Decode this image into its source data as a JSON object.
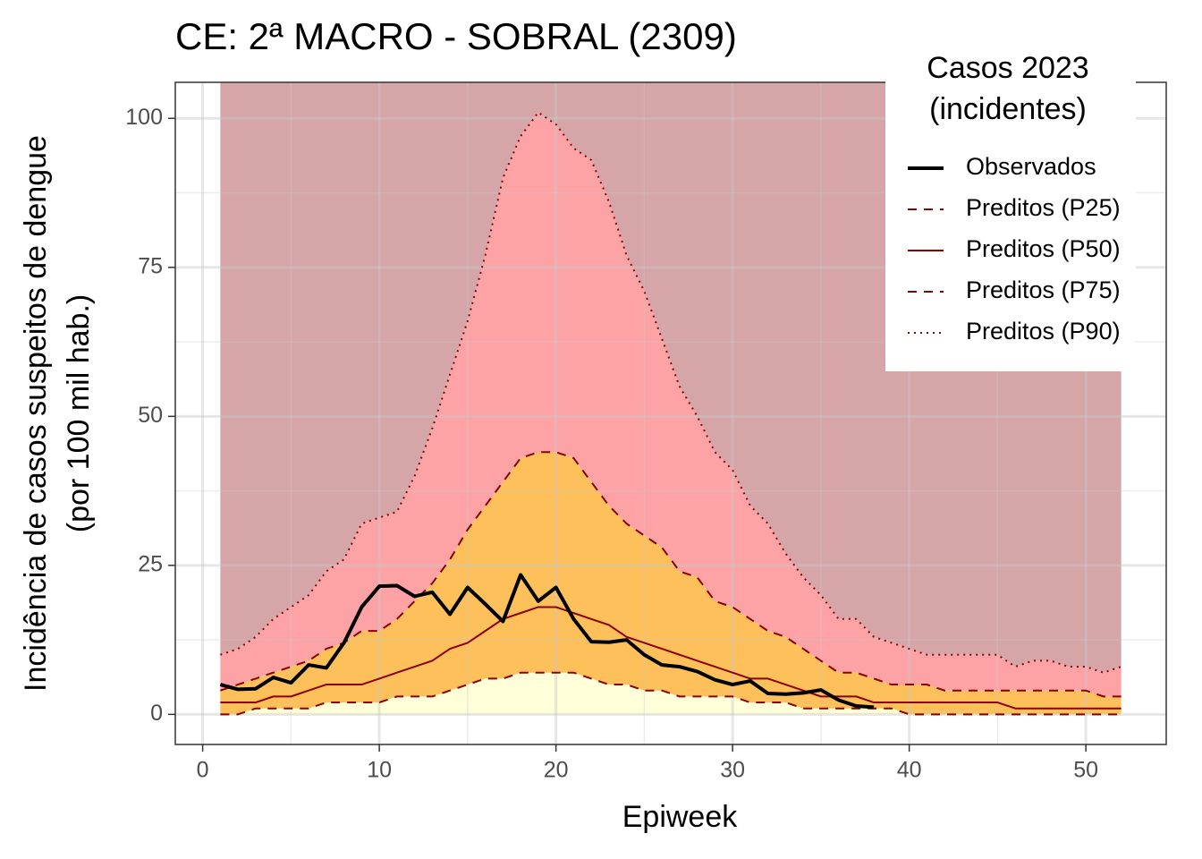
{
  "chart_data": {
    "type": "line",
    "title": "CE: 2ª MACRO - SOBRAL (2309)",
    "x_label": "Epiweek",
    "y_label": [
      "Incidência de casos suspeitos de dengue",
      "(por 100 mil hab.)"
    ],
    "legend_title": [
      "Casos 2023",
      "(incidentes)"
    ],
    "legend_position": "top-right",
    "grid": true,
    "xlim": [
      -1.55,
      54.55
    ],
    "xticks": [
      0,
      10,
      20,
      30,
      40,
      50
    ],
    "xminorticks": [
      5,
      15,
      25,
      35,
      45
    ],
    "ylim": [
      -5.05,
      106.05
    ],
    "yticks": [
      0,
      25,
      50,
      75,
      100
    ],
    "yminorticks": [
      12.5,
      37.5,
      62.5,
      87.5
    ],
    "band_colors": [
      "#ffffd9",
      "#fdc05a",
      "#fea3a5",
      "#d6a5a7"
    ],
    "x": [
      1,
      2,
      3,
      4,
      5,
      6,
      7,
      8,
      9,
      10,
      11,
      12,
      13,
      14,
      15,
      16,
      17,
      18,
      19,
      20,
      21,
      22,
      23,
      24,
      25,
      26,
      27,
      28,
      29,
      30,
      31,
      32,
      33,
      34,
      35,
      36,
      37,
      38,
      39,
      40,
      41,
      42,
      43,
      44,
      45,
      46,
      47,
      48,
      49,
      50,
      51,
      52
    ],
    "series": [
      {
        "name": "Observados",
        "color": "#000000",
        "style": "solid",
        "width": 4,
        "values": [
          5,
          4.2,
          4.3,
          6.2,
          5.3,
          8.3,
          7.8,
          12,
          18,
          21.5,
          21.6,
          19.8,
          20.5,
          16.8,
          21.3,
          18.5,
          15.6,
          23.4,
          19,
          21.3,
          16,
          12.2,
          12.1,
          12.5,
          10,
          8.3,
          8,
          7.2,
          5.8,
          5,
          5.6,
          3.5,
          3.4,
          3.6,
          4.1,
          2.4,
          1.4,
          1.2,
          null,
          null,
          null,
          null,
          null,
          null,
          null,
          null,
          null,
          null,
          null,
          null,
          null,
          null
        ]
      },
      {
        "name": "Preditos (P25)",
        "color": "#8b0000",
        "style": "dashed",
        "width": 2,
        "values": [
          0,
          0,
          1,
          1,
          1,
          1,
          2,
          2,
          2,
          2,
          3,
          3,
          3,
          4,
          5,
          6,
          6,
          7,
          7,
          7,
          7,
          6,
          5,
          5,
          4,
          4,
          3,
          3,
          3,
          3,
          2,
          2,
          2,
          1,
          1,
          1,
          1,
          1,
          1,
          0,
          0,
          0,
          0,
          0,
          0,
          0,
          0,
          0,
          0,
          0,
          0,
          0
        ]
      },
      {
        "name": "Preditos (P50)",
        "color": "#8b0000",
        "style": "solid",
        "width": 2,
        "values": [
          2,
          2,
          2,
          3,
          3,
          4,
          5,
          5,
          5,
          6,
          7,
          8,
          9,
          11,
          12,
          14,
          16,
          17,
          18,
          18,
          17,
          16,
          15,
          13,
          12,
          11,
          10,
          9,
          8,
          7,
          6,
          6,
          5,
          4,
          3,
          3,
          3,
          2,
          2,
          2,
          2,
          2,
          2,
          2,
          2,
          1,
          1,
          1,
          1,
          1,
          1,
          1
        ]
      },
      {
        "name": "Preditos (P75)",
        "color": "#8b0000",
        "style": "dashed",
        "width": 2,
        "values": [
          4,
          5,
          6,
          7,
          8,
          9,
          11,
          12,
          14,
          14,
          16,
          19,
          22,
          26,
          31,
          35,
          39,
          43,
          44,
          44,
          43,
          39,
          35,
          32,
          30,
          28,
          24,
          23,
          19,
          18,
          16,
          14,
          13,
          11,
          9,
          7,
          7,
          6,
          5,
          5,
          5,
          4,
          4,
          4,
          4,
          4,
          4,
          4,
          4,
          4,
          3,
          3
        ]
      },
      {
        "name": "Preditos (P90)",
        "color": "#8b0000",
        "style": "dotted",
        "width": 2,
        "values": [
          10,
          11,
          13,
          16,
          18,
          20,
          24,
          26,
          32,
          33,
          34,
          40,
          48,
          57,
          66,
          77,
          90,
          97,
          101,
          99,
          95,
          93,
          86,
          77,
          71,
          63,
          55,
          50,
          44,
          41,
          35,
          32,
          27,
          23,
          20,
          16,
          16,
          13,
          12,
          11,
          10,
          10,
          10,
          10,
          10,
          8,
          9,
          9,
          8,
          8,
          7,
          8
        ]
      }
    ]
  }
}
